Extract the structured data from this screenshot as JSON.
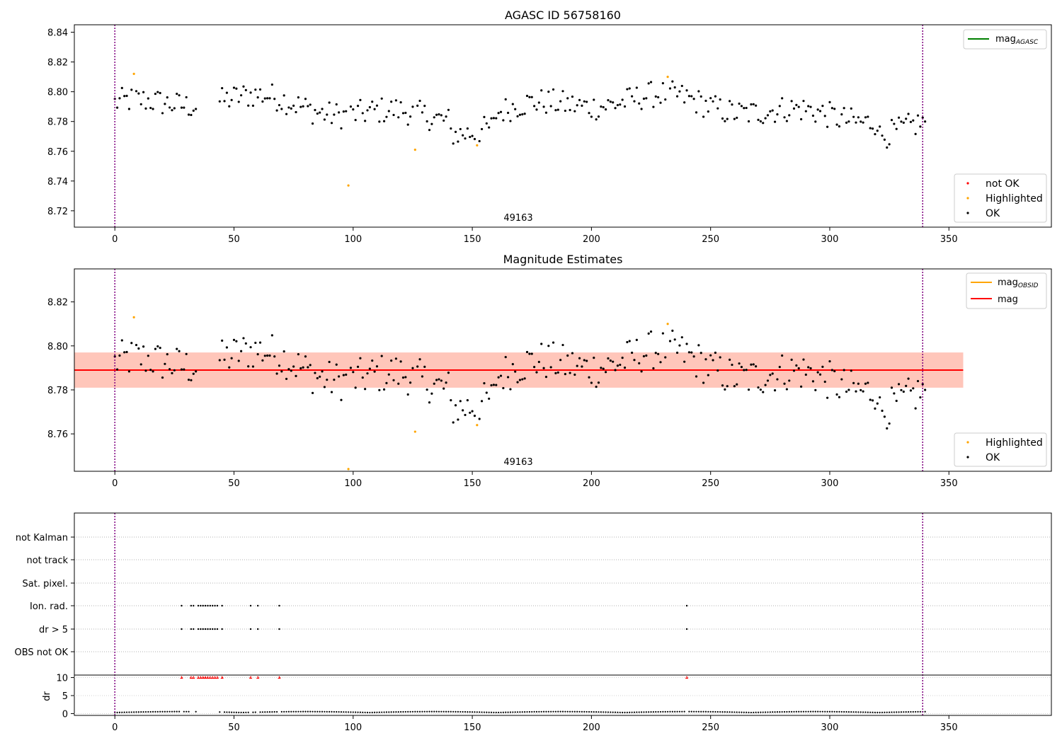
{
  "colors": {
    "ok": "#000000",
    "highlighted": "#ffa500",
    "not_ok": "#ff0000",
    "agasc": "#008000",
    "mag_line": "#ff0000",
    "obsid_line": "#ffa500",
    "band_outer": "#ffc0cb",
    "band_inner": "#ffa07a",
    "vline": "#800080"
  },
  "chart_data": [
    {
      "type": "scatter",
      "title": "AGASC ID 56758160",
      "xlabel": "",
      "ylabel": "",
      "xlim": [
        -17,
        393
      ],
      "ylim": [
        8.709,
        8.845
      ],
      "x_ticks": [
        0,
        50,
        100,
        150,
        200,
        250,
        300,
        350
      ],
      "y_ticks": [
        8.72,
        8.74,
        8.76,
        8.78,
        8.8,
        8.82,
        8.84
      ],
      "grid": false,
      "vlines": [
        0,
        339
      ],
      "annotation": "49163",
      "legend_upper": {
        "position": "top-right",
        "entries": [
          {
            "label": "mag",
            "subscript": "AGASC"
          }
        ]
      },
      "legend_lower": {
        "position": "bottom-right",
        "entries": [
          "not OK",
          "Highlighted",
          "OK"
        ]
      },
      "highlighted": [
        [
          8,
          8.812
        ],
        [
          98,
          8.737
        ],
        [
          126,
          8.761
        ],
        [
          152,
          8.764
        ],
        [
          232,
          8.81
        ]
      ],
      "not_ok": []
    },
    {
      "type": "scatter",
      "title": "Magnitude Estimates",
      "xlabel": "",
      "ylabel": "",
      "xlim": [
        -17,
        393
      ],
      "ylim": [
        8.743,
        8.835
      ],
      "x_ticks": [
        0,
        50,
        100,
        150,
        200,
        250,
        300,
        350
      ],
      "y_ticks": [
        8.76,
        8.78,
        8.8,
        8.82
      ],
      "grid": false,
      "vlines": [
        0,
        339
      ],
      "annotation": "49163",
      "mag": 8.789,
      "band_outer": [
        8.781,
        8.797
      ],
      "band_inner": [
        8.781,
        8.797
      ],
      "band_x_end": 356,
      "legend_upper": {
        "position": "top-right",
        "entries": [
          {
            "label": "mag",
            "subscript": "OBSID"
          },
          {
            "label": "mag",
            "subscript": ""
          }
        ]
      },
      "legend_lower": {
        "position": "bottom-right",
        "entries": [
          "Highlighted",
          "OK"
        ]
      },
      "highlighted": [
        [
          8,
          8.813
        ],
        [
          98,
          8.744
        ],
        [
          126,
          8.761
        ],
        [
          152,
          8.764
        ],
        [
          232,
          8.81
        ]
      ]
    },
    {
      "type": "scatter",
      "title": "",
      "xlim": [
        -17,
        393
      ],
      "flag_labels": [
        "not Kalman",
        "not track",
        "Sat. pixel.",
        "Ion. rad.",
        "dr > 5",
        "OBS not OK"
      ],
      "flag_points": {
        "Ion. rad.": [
          28,
          32,
          33,
          35,
          36,
          37,
          38,
          39,
          40,
          41,
          42,
          43,
          45,
          57,
          60,
          69,
          240
        ],
        "dr > 5": [
          28,
          32,
          33,
          35,
          36,
          37,
          38,
          39,
          40,
          41,
          42,
          43,
          45,
          57,
          60,
          69,
          240
        ]
      },
      "dr_ylabel": "dr",
      "dr_ticks": [
        0,
        5,
        10
      ],
      "dr_ylim": [
        -0.5,
        10.5
      ],
      "dr_large_x": [
        28,
        32,
        33,
        35,
        36,
        37,
        38,
        39,
        40,
        41,
        42,
        43,
        45,
        57,
        60,
        69,
        240
      ],
      "dr_large_value": 10,
      "vlines": [
        0,
        339
      ],
      "x_ticks": [
        0,
        50,
        100,
        150,
        200,
        250,
        300,
        350
      ]
    }
  ]
}
